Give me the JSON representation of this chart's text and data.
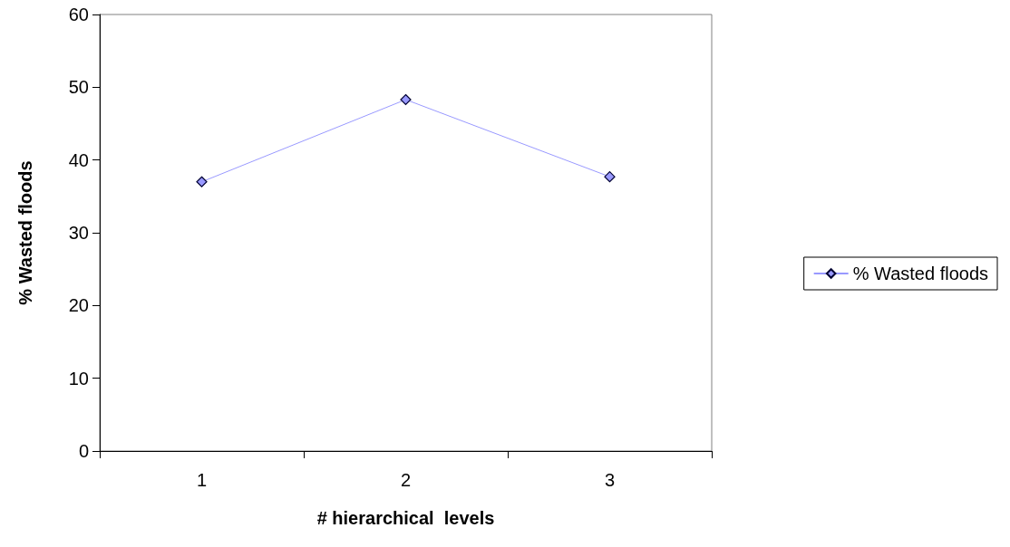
{
  "chart_data": {
    "type": "line",
    "xlabel": "# hierarchical  levels",
    "ylabel": "% Wasted floods",
    "categories": [
      "1",
      "2",
      "3"
    ],
    "series": [
      {
        "name": "% Wasted floods",
        "color": "#9999ff",
        "values": [
          37,
          48.3,
          37.7
        ]
      }
    ],
    "ylim": [
      0,
      60
    ],
    "yticks": [
      0,
      10,
      20,
      30,
      40,
      50,
      60
    ],
    "grid": false,
    "legend": "right",
    "marker": "diamond",
    "line_style": "solid"
  }
}
